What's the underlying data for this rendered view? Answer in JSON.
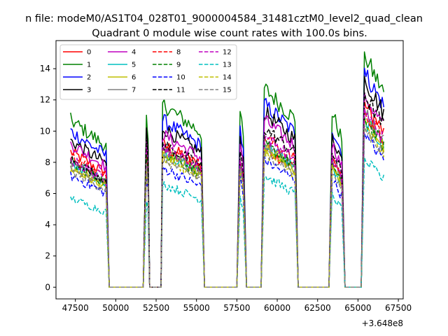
{
  "chart_data": {
    "type": "line",
    "suptitle": "n file: modeM0/AS1T04_028T01_9000004584_31481cztM0_level2_quad_clean",
    "title": "Quadrant 0 module wise count rates with 100.0s bins.",
    "xlabel": "",
    "ylabel": "",
    "x_offset_label": "+3.648e8",
    "xlim": [
      46300,
      67800
    ],
    "ylim": [
      -0.75,
      15.8
    ],
    "x_ticks": [
      47500,
      50000,
      52500,
      55000,
      57500,
      60000,
      62500,
      65000,
      67500
    ],
    "x_tick_labels": [
      "47500",
      "50000",
      "52500",
      "55000",
      "57500",
      "60000",
      "62500",
      "65000",
      "67500"
    ],
    "y_ticks": [
      0,
      2,
      4,
      6,
      8,
      10,
      12,
      14
    ],
    "y_tick_labels": [
      "0",
      "2",
      "4",
      "6",
      "8",
      "10",
      "12",
      "14"
    ],
    "legend_location": "upper-left",
    "segments": [
      {
        "x_start": 47200,
        "x_end": 49400,
        "drop_end": 49600
      },
      {
        "rise_start": 51700,
        "x_start": 51900,
        "x_end": 52000,
        "drop_end": 52100
      },
      {
        "rise_start": 52800,
        "x_start": 52900,
        "x_end": 55300,
        "drop_end": 55500
      },
      {
        "rise_start": 57500,
        "x_start": 57700,
        "x_end": 57900,
        "drop_end": 58100
      },
      {
        "rise_start": 59000,
        "x_start": 59200,
        "x_end": 61100,
        "drop_end": 61300
      },
      {
        "rise_start": 63200,
        "x_start": 63400,
        "x_end": 64000,
        "drop_end": 64200
      },
      {
        "rise_start": 65200,
        "x_start": 65400,
        "x_end": 66600,
        "drop_end": null
      }
    ],
    "series": [
      {
        "name": "0",
        "color": "#ff0000",
        "dash": "solid",
        "levels": [
          8.5,
          8.5,
          9.0,
          8.0,
          8.8,
          8.2,
          11.5
        ]
      },
      {
        "name": "1",
        "color": "#008000",
        "dash": "solid",
        "levels": [
          10.5,
          10.5,
          11.5,
          11.0,
          12.5,
          11.0,
          14.5
        ]
      },
      {
        "name": "2",
        "color": "#0000ff",
        "dash": "solid",
        "levels": [
          9.8,
          9.8,
          10.5,
          10.0,
          11.5,
          10.0,
          13.5
        ]
      },
      {
        "name": "3",
        "color": "#000000",
        "dash": "solid",
        "levels": [
          9.2,
          10.0,
          10.0,
          9.5,
          11.0,
          9.5,
          13.0
        ]
      },
      {
        "name": "4",
        "color": "#bf00bf",
        "dash": "solid",
        "levels": [
          9.0,
          9.0,
          9.6,
          9.0,
          10.5,
          9.0,
          12.0
        ]
      },
      {
        "name": "5",
        "color": "#00bfbf",
        "dash": "solid",
        "levels": [
          7.8,
          7.5,
          8.5,
          7.8,
          9.0,
          7.5,
          10.5
        ]
      },
      {
        "name": "6",
        "color": "#bfbf00",
        "dash": "solid",
        "levels": [
          7.5,
          7.5,
          8.5,
          7.8,
          8.8,
          7.8,
          10.5
        ]
      },
      {
        "name": "7",
        "color": "#808080",
        "dash": "solid",
        "levels": [
          7.8,
          8.0,
          8.5,
          8.0,
          9.2,
          8.0,
          11.0
        ]
      },
      {
        "name": "8",
        "color": "#ff0000",
        "dash": "dashed",
        "levels": [
          8.2,
          8.5,
          9.0,
          8.2,
          9.5,
          8.2,
          11.0
        ]
      },
      {
        "name": "9",
        "color": "#008000",
        "dash": "dashed",
        "levels": [
          7.8,
          8.0,
          8.5,
          7.8,
          9.0,
          7.8,
          10.5
        ]
      },
      {
        "name": "10",
        "color": "#0000ff",
        "dash": "dashed",
        "levels": [
          7.0,
          7.0,
          7.5,
          7.0,
          8.0,
          6.8,
          9.5
        ]
      },
      {
        "name": "11",
        "color": "#000000",
        "dash": "dashed",
        "levels": [
          8.0,
          9.5,
          9.0,
          8.5,
          10.0,
          8.5,
          12.0
        ]
      },
      {
        "name": "12",
        "color": "#bf00bf",
        "dash": "dashed",
        "levels": [
          8.0,
          8.0,
          8.8,
          8.0,
          9.5,
          8.0,
          11.0
        ]
      },
      {
        "name": "13",
        "color": "#00bfbf",
        "dash": "dashed",
        "levels": [
          5.6,
          5.5,
          6.5,
          5.8,
          7.0,
          5.8,
          8.0
        ]
      },
      {
        "name": "14",
        "color": "#bfbf00",
        "dash": "dashed",
        "levels": [
          7.5,
          7.5,
          8.2,
          7.5,
          8.5,
          7.5,
          10.0
        ]
      },
      {
        "name": "15",
        "color": "#808080",
        "dash": "dashed",
        "levels": [
          7.3,
          7.5,
          8.0,
          7.5,
          8.5,
          7.2,
          10.0
        ]
      }
    ]
  }
}
